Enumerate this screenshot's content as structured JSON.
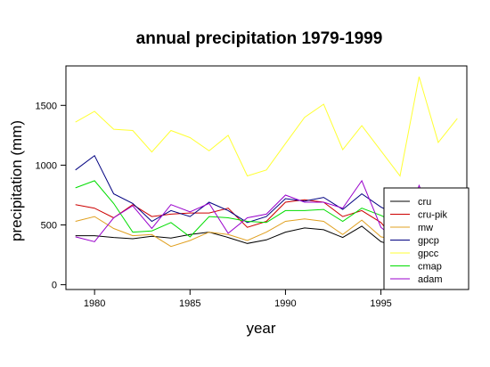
{
  "chart_data": {
    "type": "line",
    "title": "annual precipitation 1979-1999",
    "xlabel": "year",
    "ylabel": "precipitation (mm)",
    "xlim": [
      1978.5,
      1999.5
    ],
    "ylim": [
      -40,
      1830
    ],
    "x_ticks": [
      1980,
      1985,
      1990,
      1995
    ],
    "y_ticks": [
      0,
      500,
      1000,
      1500
    ],
    "grid": false,
    "legend_position": "bottom-right",
    "x": [
      1979,
      1980,
      1981,
      1982,
      1983,
      1984,
      1985,
      1986,
      1987,
      1988,
      1989,
      1990,
      1991,
      1992,
      1993,
      1994,
      1995,
      1996,
      1997,
      1998,
      1999
    ],
    "series": [
      {
        "name": "cru",
        "color": "#000000",
        "values": [
          410,
          410,
          395,
          385,
          405,
          390,
          420,
          440,
          395,
          345,
          375,
          440,
          475,
          460,
          395,
          490,
          360,
          310,
          350,
          360,
          400
        ]
      },
      {
        "name": "cru-pik",
        "color": "#cc0000",
        "values": [
          670,
          640,
          560,
          670,
          570,
          590,
          600,
          600,
          640,
          480,
          530,
          690,
          710,
          690,
          570,
          620,
          520,
          330,
          380,
          420,
          470
        ]
      },
      {
        "name": "mw",
        "color": "#e0a020",
        "values": [
          530,
          570,
          470,
          410,
          420,
          320,
          370,
          440,
          420,
          370,
          440,
          530,
          550,
          530,
          420,
          540,
          400,
          370,
          420,
          450,
          500
        ]
      },
      {
        "name": "gpcp",
        "color": "#000080",
        "values": [
          960,
          1080,
          760,
          680,
          530,
          620,
          570,
          690,
          620,
          520,
          570,
          720,
          700,
          730,
          630,
          760,
          650,
          570,
          650,
          680,
          770
        ]
      },
      {
        "name": "gpcc",
        "color": "#ffff33",
        "values": [
          1360,
          1450,
          1300,
          1290,
          1110,
          1290,
          1230,
          1120,
          1250,
          910,
          960,
          1180,
          1400,
          1510,
          1130,
          1330,
          1120,
          910,
          1740,
          1190,
          1390
        ]
      },
      {
        "name": "cmap",
        "color": "#00dd00",
        "values": [
          810,
          870,
          680,
          440,
          450,
          520,
          400,
          570,
          560,
          530,
          520,
          620,
          620,
          630,
          530,
          640,
          580,
          500,
          560,
          580,
          600
        ]
      },
      {
        "name": "adam",
        "color": "#9900cc",
        "values": [
          400,
          360,
          560,
          660,
          470,
          670,
          610,
          680,
          430,
          560,
          590,
          750,
          690,
          690,
          640,
          870,
          480,
          350,
          830,
          450,
          550
        ]
      }
    ]
  }
}
